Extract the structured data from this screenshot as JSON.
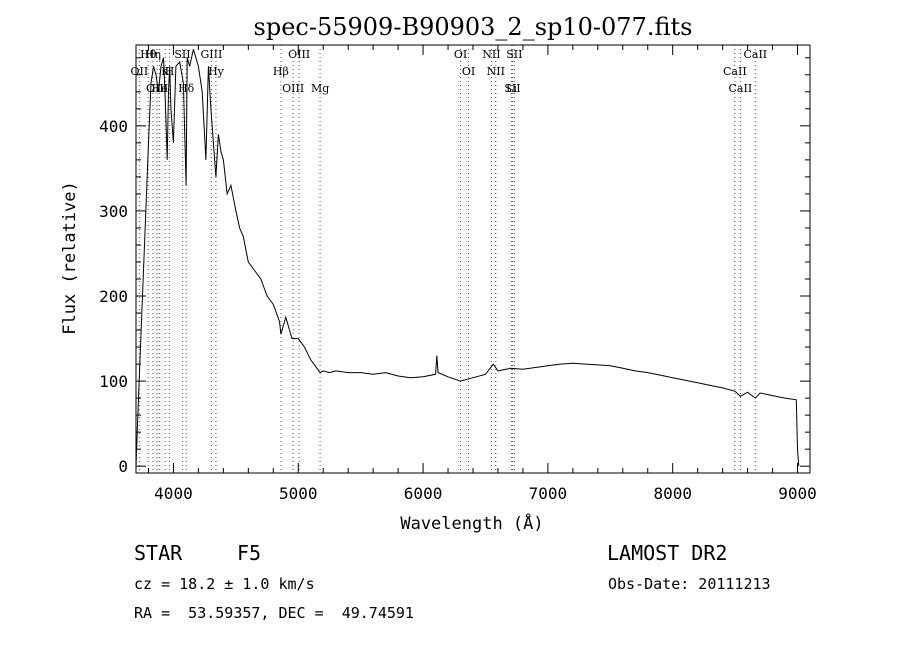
{
  "chart_data": {
    "type": "line",
    "title": "spec-55909-B90903_2_sp10-077.fits",
    "xlabel": "Wavelength (Å)",
    "ylabel": "Flux (relative)",
    "xlim": [
      3700,
      9100
    ],
    "ylim": [
      -8,
      495
    ],
    "xticks": [
      4000,
      5000,
      6000,
      7000,
      8000,
      9000
    ],
    "yticks": [
      0,
      100,
      200,
      300,
      400
    ],
    "grid": false,
    "series": [
      {
        "x": [
          3700,
          3720,
          3760,
          3800,
          3820,
          3840,
          3860,
          3880,
          3900,
          3920,
          3935,
          3950,
          3960,
          3970,
          3980,
          3990,
          4000,
          4020,
          4050,
          4080,
          4101,
          4110,
          4130,
          4160,
          4200,
          4230,
          4260,
          4280,
          4300,
          4320,
          4340,
          4360,
          4380,
          4400,
          4430,
          4460,
          4500,
          4530,
          4560,
          4600,
          4650,
          4700,
          4750,
          4800,
          4850,
          4861,
          4880,
          4900,
          4950,
          5000,
          5050,
          5100,
          5150,
          5175,
          5200,
          5250,
          5300,
          5400,
          5500,
          5600,
          5700,
          5800,
          5900,
          6000,
          6100,
          6110,
          6120,
          6200,
          6300,
          6400,
          6500,
          6563,
          6600,
          6700,
          6800,
          6900,
          7000,
          7100,
          7200,
          7300,
          7400,
          7500,
          7600,
          7700,
          7800,
          7900,
          8000,
          8100,
          8200,
          8300,
          8400,
          8500,
          8542,
          8600,
          8662,
          8700,
          8800,
          8900,
          8990,
          9000,
          9010
        ],
        "y": [
          0,
          80,
          230,
          380,
          450,
          470,
          460,
          440,
          470,
          480,
          430,
          360,
          440,
          470,
          420,
          400,
          380,
          470,
          475,
          450,
          330,
          480,
          470,
          490,
          470,
          440,
          360,
          470,
          420,
          380,
          340,
          390,
          370,
          360,
          320,
          330,
          300,
          280,
          270,
          240,
          230,
          220,
          200,
          190,
          170,
          155,
          165,
          175,
          150,
          150,
          140,
          125,
          115,
          110,
          112,
          110,
          112,
          110,
          110,
          108,
          110,
          106,
          104,
          105,
          108,
          130,
          110,
          105,
          100,
          104,
          108,
          120,
          112,
          115,
          114,
          116,
          118,
          120,
          121,
          120,
          119,
          118,
          115,
          112,
          110,
          107,
          104,
          101,
          98,
          95,
          92,
          88,
          82,
          87,
          80,
          86,
          83,
          80,
          78,
          20,
          0
        ]
      }
    ],
    "lines": [
      {
        "label": "Hθ",
        "x": 3798
      },
      {
        "label": "K",
        "x": 3934
      },
      {
        "label": "Hδ",
        "x": 4102
      },
      {
        "label": "GIII",
        "x": 4304
      },
      {
        "label": "OII",
        "x": 3727
      },
      {
        "label": "He",
        "x": 3889
      },
      {
        "label": "SII",
        "x": 4072
      },
      {
        "label": "Hy",
        "x": 4341
      },
      {
        "label": "OIII",
        "x": 3869
      },
      {
        "label": "Hη",
        "x": 3835
      },
      {
        "label": "H",
        "x": 3969
      },
      {
        "label": "OIII",
        "x": 4959
      },
      {
        "label": "OIII",
        "x": 5007
      },
      {
        "label": "Hβ",
        "x": 4861
      },
      {
        "label": "Mg",
        "x": 5175
      },
      {
        "label": "OI",
        "x": 6300
      },
      {
        "label": "OI",
        "x": 6364
      },
      {
        "label": "Li",
        "x": 6708
      },
      {
        "label": "NII",
        "x": 6548
      },
      {
        "label": "NII",
        "x": 6583
      },
      {
        "label": "SII",
        "x": 6716
      },
      {
        "label": "SII",
        "x": 6731
      },
      {
        "label": "CaII",
        "x": 8498
      },
      {
        "label": "CaII",
        "x": 8542
      },
      {
        "label": "CaII",
        "x": 8662
      }
    ]
  },
  "info": {
    "object_class": "STAR",
    "subclass": "F5",
    "survey": "LAMOST DR2",
    "cz_line": "cz = 18.2 ± 1.0 km/s",
    "obs_date": "Obs-Date: 20111213",
    "radec": "RA =  53.59357, DEC =  49.74591"
  }
}
